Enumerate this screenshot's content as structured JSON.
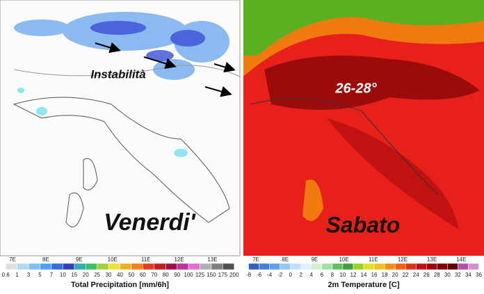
{
  "left_panel": {
    "annotation": "Instabilità",
    "day": "Venerdi'",
    "title": "Total Precipitation [mm/6h]",
    "longitudes": [
      "7E",
      "8E",
      "9E",
      "10E",
      "11E",
      "12E",
      "13E"
    ],
    "scale": [
      "0.6",
      "1",
      "3",
      "5",
      "7",
      "10",
      "15",
      "20",
      "25",
      "30",
      "40",
      "50",
      "60",
      "70",
      "80",
      "90",
      "100",
      "125",
      "150",
      "175",
      "200"
    ]
  },
  "right_panel": {
    "annotation": "26-28°",
    "day": "Sabato",
    "title": "2m Temperature [C]",
    "longitudes": [
      "7E",
      "8E",
      "9E",
      "10E",
      "11E",
      "12E",
      "13E",
      "14E"
    ],
    "scale": [
      "-8",
      "-6",
      "-4",
      "-2",
      "0",
      "2",
      "4",
      "6",
      "8",
      "10",
      "12",
      "14",
      "16",
      "18",
      "20",
      "22",
      "24",
      "26",
      "28",
      "30",
      "32",
      "34",
      "36"
    ]
  }
}
